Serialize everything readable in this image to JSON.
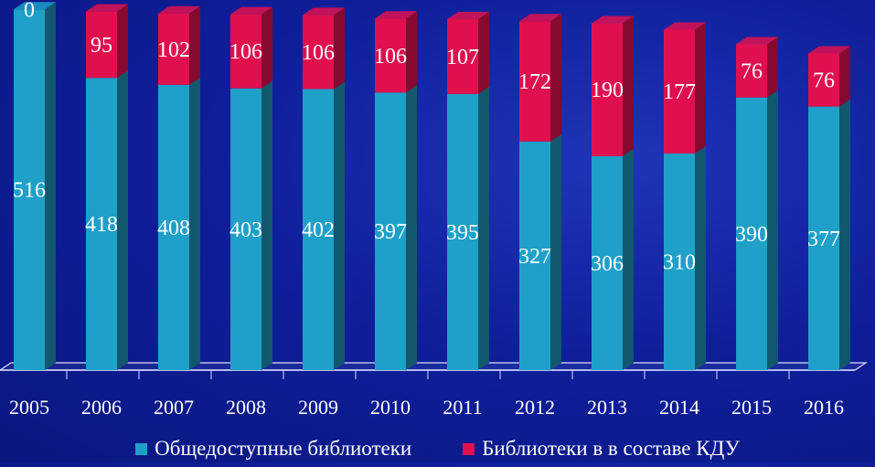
{
  "chart_data": {
    "type": "bar",
    "stacked": true,
    "three_d": true,
    "categories": [
      "2005",
      "2006",
      "2007",
      "2008",
      "2009",
      "2010",
      "2011",
      "2012",
      "2013",
      "2014",
      "2015",
      "2016"
    ],
    "series": [
      {
        "name": "Общедоступные библиотеки",
        "color": "#1ea0c8",
        "values": [
          516,
          418,
          408,
          403,
          402,
          397,
          395,
          327,
          306,
          310,
          390,
          377
        ]
      },
      {
        "name": "Библиотеки в в составе КДУ",
        "color": "#e0104f",
        "values": [
          0,
          95,
          102,
          106,
          106,
          106,
          107,
          172,
          190,
          177,
          76,
          76
        ]
      }
    ],
    "data_labels": true,
    "legend_position": "bottom",
    "grid": false,
    "ylim": [
      0,
      520
    ]
  }
}
